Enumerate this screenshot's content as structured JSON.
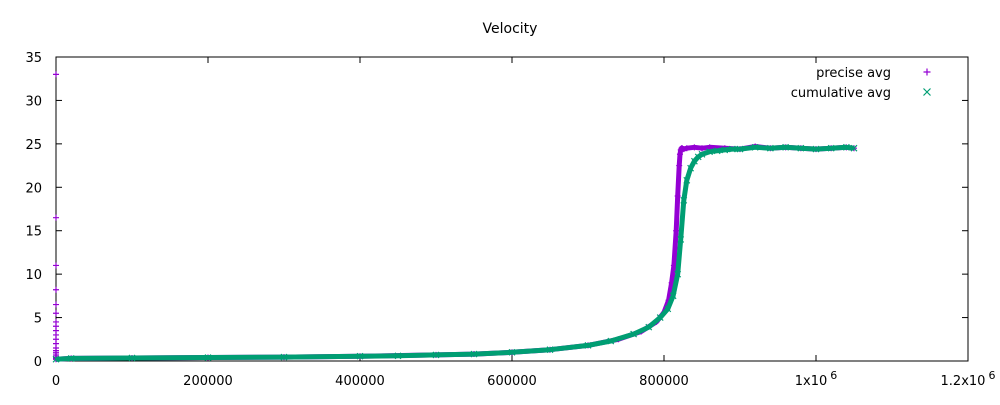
{
  "chart_data": {
    "type": "scatter",
    "title": "Velocity",
    "xlabel": "",
    "ylabel": "",
    "xlim": [
      0,
      1200000
    ],
    "ylim": [
      0,
      35
    ],
    "grid": false,
    "legend_position": "top-right",
    "x_ticks": [
      {
        "value": 0,
        "label": "0"
      },
      {
        "value": 200000,
        "label": "200000"
      },
      {
        "value": 400000,
        "label": "400000"
      },
      {
        "value": 600000,
        "label": "600000"
      },
      {
        "value": 800000,
        "label": "800000"
      },
      {
        "value": 1000000,
        "label": "1x10",
        "exp": "6"
      },
      {
        "value": 1200000,
        "label": "1.2x10",
        "exp": "6"
      }
    ],
    "y_ticks": [
      {
        "value": 0,
        "label": "0"
      },
      {
        "value": 5,
        "label": "5"
      },
      {
        "value": 10,
        "label": "10"
      },
      {
        "value": 15,
        "label": "15"
      },
      {
        "value": 20,
        "label": "20"
      },
      {
        "value": 25,
        "label": "25"
      },
      {
        "value": 30,
        "label": "30"
      },
      {
        "value": 35,
        "label": "35"
      }
    ],
    "series": [
      {
        "name": "precise avg",
        "marker": "plus",
        "color": "#9400d3",
        "x": [
          0,
          0,
          0,
          0,
          0,
          0,
          0,
          0,
          0,
          0,
          0,
          0,
          0,
          0,
          0,
          0,
          0,
          0,
          0,
          0,
          20000,
          100000,
          200000,
          300000,
          400000,
          500000,
          550000,
          600000,
          650000,
          700000,
          740000,
          770000,
          790000,
          800000,
          806000,
          810000,
          813000,
          816000,
          818000,
          820000,
          821000,
          822000,
          823000,
          824000,
          826000,
          830000,
          840000,
          850000,
          860000,
          880000,
          900000,
          920000,
          940000,
          960000,
          980000,
          1000000,
          1020000,
          1040000,
          1050000
        ],
        "y": [
          33,
          16.5,
          11,
          8.2,
          6.5,
          5.5,
          4.5,
          4,
          3.5,
          3,
          2.5,
          2,
          1.5,
          1.2,
          1,
          0.8,
          0.6,
          0.4,
          0.3,
          0.2,
          0.3,
          0.35,
          0.4,
          0.45,
          0.55,
          0.7,
          0.8,
          1.0,
          1.3,
          1.8,
          2.5,
          3.4,
          4.5,
          5.6,
          7,
          9,
          11,
          15,
          19,
          22.5,
          23.8,
          24.3,
          24.5,
          24.5,
          24.4,
          24.5,
          24.6,
          24.5,
          24.6,
          24.5,
          24.4,
          24.7,
          24.5,
          24.6,
          24.5,
          24.4,
          24.5,
          24.6,
          24.5
        ]
      },
      {
        "name": "cumulative avg",
        "marker": "cross",
        "color": "#009e73",
        "x": [
          0,
          20000,
          100000,
          200000,
          300000,
          400000,
          450000,
          500000,
          550000,
          600000,
          650000,
          700000,
          730000,
          760000,
          780000,
          795000,
          805000,
          812000,
          818000,
          822000,
          826000,
          830000,
          835000,
          840000,
          845000,
          850000,
          860000,
          870000,
          880000,
          890000,
          900000,
          920000,
          940000,
          960000,
          980000,
          1000000,
          1020000,
          1040000,
          1050000
        ],
        "y": [
          0.2,
          0.3,
          0.35,
          0.4,
          0.45,
          0.55,
          0.6,
          0.7,
          0.8,
          1.0,
          1.3,
          1.8,
          2.3,
          3.1,
          3.9,
          5.0,
          6.0,
          7.5,
          10,
          14,
          18.5,
          20.8,
          22.2,
          23.0,
          23.5,
          23.8,
          24.1,
          24.2,
          24.3,
          24.4,
          24.4,
          24.6,
          24.5,
          24.6,
          24.5,
          24.4,
          24.5,
          24.6,
          24.5
        ]
      }
    ]
  }
}
